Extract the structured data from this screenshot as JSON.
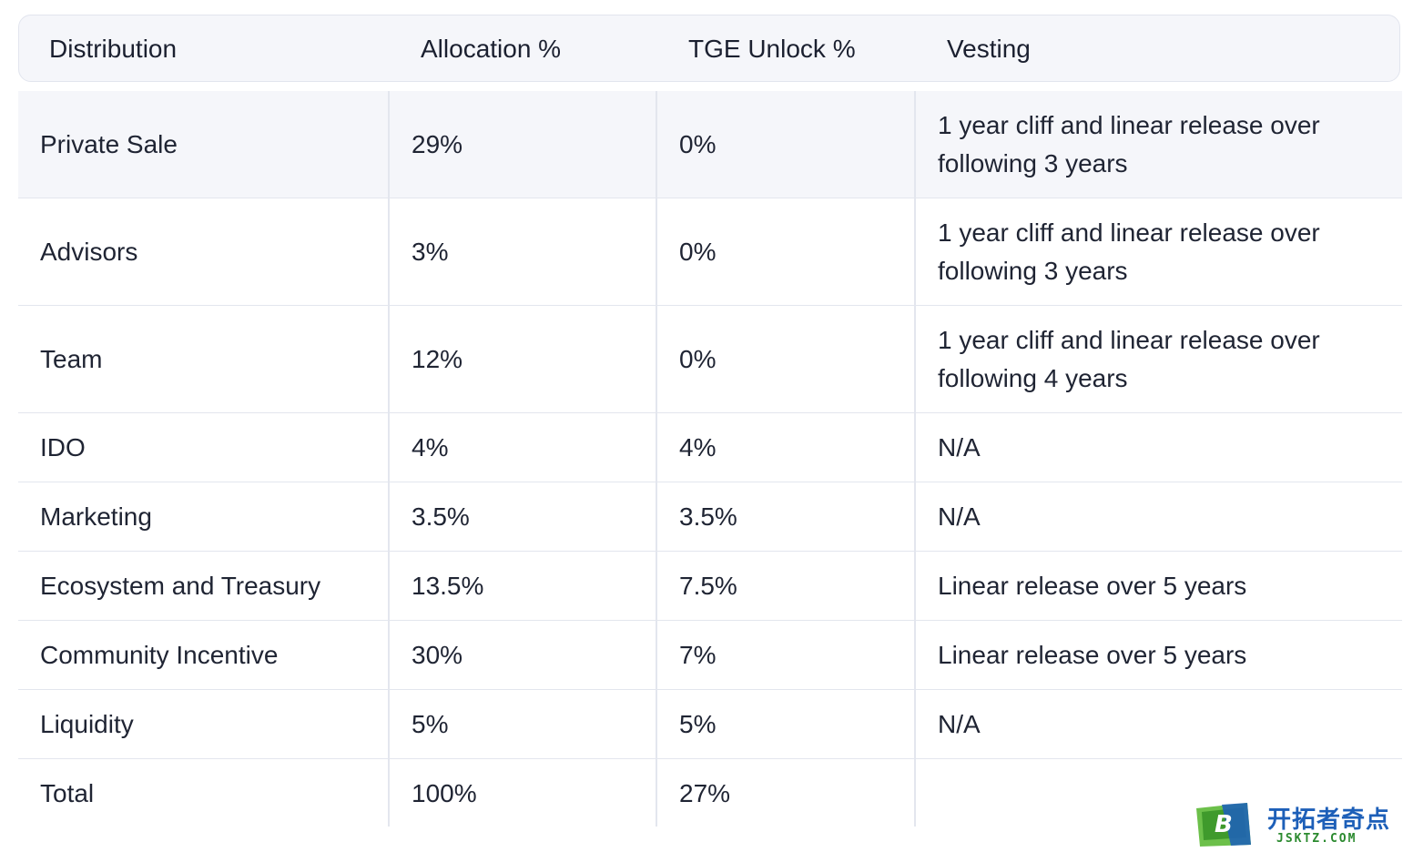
{
  "table": {
    "headers": [
      "Distribution",
      "Allocation %",
      "TGE Unlock %",
      "Vesting"
    ],
    "rows": [
      {
        "distribution": "Private Sale",
        "allocation": "29%",
        "tge": "0%",
        "vesting": "1 year cliff and linear release over following 3 years"
      },
      {
        "distribution": "Advisors",
        "allocation": "3%",
        "tge": "0%",
        "vesting": "1 year cliff and linear release over following 3 years"
      },
      {
        "distribution": "Team",
        "allocation": "12%",
        "tge": "0%",
        "vesting": "1 year cliff and linear release over following 4 years"
      },
      {
        "distribution": "IDO",
        "allocation": "4%",
        "tge": "4%",
        "vesting": "N/A"
      },
      {
        "distribution": "Marketing",
        "allocation": "3.5%",
        "tge": "3.5%",
        "vesting": "N/A"
      },
      {
        "distribution": "Ecosystem and Treasury",
        "allocation": "13.5%",
        "tge": "7.5%",
        "vesting": "Linear release over 5 years"
      },
      {
        "distribution": "Community Incentive",
        "allocation": "30%",
        "tge": "7%",
        "vesting": "Linear release over 5 years"
      },
      {
        "distribution": "Liquidity",
        "allocation": "5%",
        "tge": "5%",
        "vesting": "N/A"
      },
      {
        "distribution": "Total",
        "allocation": "100%",
        "tge": "27%",
        "vesting": ""
      }
    ]
  },
  "watermark": {
    "mark_letter": "B",
    "name_cn": "开拓者奇点",
    "name_en": "JSKTZ.COM"
  }
}
